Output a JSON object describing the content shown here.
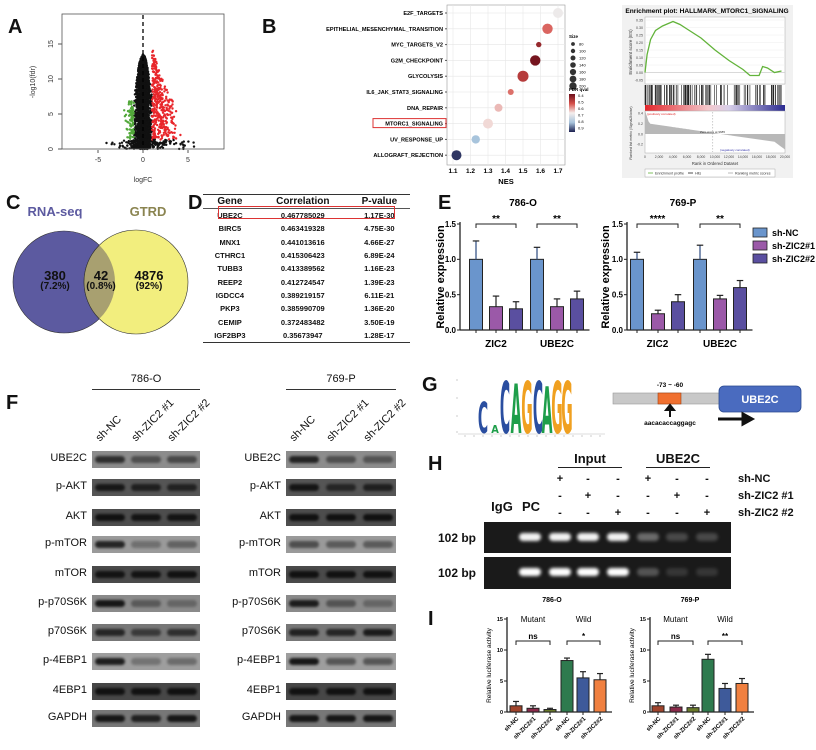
{
  "panel_labels": {
    "a": "A",
    "b": "B",
    "c": "C",
    "d": "D",
    "e": "E",
    "f": "F",
    "g": "G",
    "h": "H",
    "i": "I"
  },
  "chart_data": [
    {
      "type": "scatter",
      "xlabel": "logFC",
      "ylabel": "-log10(fdr)",
      "xlim": [
        -9,
        9
      ],
      "ylim": [
        0,
        19
      ],
      "xticks": [
        -5,
        0,
        5
      ],
      "yticks": [
        0,
        5,
        10,
        15
      ],
      "threshold_logFC": 1,
      "colors": {
        "up": "#e8262b",
        "down": "#52a83a",
        "not_significant": "#111111"
      }
    },
    {
      "type": "scatter",
      "xlabel": "NES",
      "xticks": [
        "1.1",
        "1.2",
        "1.3",
        "1.4",
        "1.5",
        "1.6",
        "1.7"
      ],
      "categories": [
        "E2F_TARGETS",
        "EPITHELIAL_MESENCHYMAL_TRANSITION",
        "MYC_TARGETS_V2",
        "G2M_CHECKPOINT",
        "GLYCOLYSIS",
        "IL6_JAK_STAT3_SIGNALING",
        "DNA_REPAIR",
        "MTORC1_SIGNALING",
        "UV_RESPONSE_UP",
        "ALLOGRAFT_REJECTION"
      ],
      "nes": [
        1.7,
        1.64,
        1.59,
        1.57,
        1.5,
        1.43,
        1.36,
        1.3,
        1.23,
        1.12
      ],
      "size": [
        150,
        160,
        60,
        160,
        170,
        70,
        110,
        150,
        120,
        150
      ],
      "fdr_qval": [
        0.66,
        0.52,
        0.44,
        0.41,
        0.47,
        0.53,
        0.6,
        0.63,
        0.75,
        0.88
      ],
      "highlight": "MTORC1_SIGNALING",
      "size_legend": {
        "title": "Size",
        "values": [
          80,
          100,
          120,
          140,
          160,
          180,
          200
        ]
      },
      "color_legend": {
        "title": "FDR qval",
        "ticks": [
          "0.4",
          "0.5",
          "0.6",
          "0.7",
          "0.8",
          "0.9"
        ]
      }
    },
    {
      "type": "line",
      "title": "Enrichment plot: HALLMARK_MTORC1_SIGNALING",
      "ylabel": "Enrichment score (ES)",
      "yticks": [
        "0.35",
        "0.30",
        "0.25",
        "0.20",
        "0.15",
        "0.10",
        "0.05",
        "0.00",
        "-0.05"
      ],
      "es_curve": [
        [
          0,
          0.0
        ],
        [
          300,
          0.12
        ],
        [
          800,
          0.22
        ],
        [
          1500,
          0.28
        ],
        [
          2500,
          0.31
        ],
        [
          3500,
          0.33
        ],
        [
          4000,
          0.34
        ],
        [
          5000,
          0.32
        ],
        [
          6000,
          0.29
        ],
        [
          8000,
          0.23
        ],
        [
          10000,
          0.15
        ],
        [
          12000,
          0.08
        ],
        [
          14000,
          0.02
        ],
        [
          15000,
          -0.02
        ],
        [
          16300,
          -0.02
        ],
        [
          16800,
          0.04
        ],
        [
          17500,
          0.03
        ],
        [
          18500,
          0.0
        ],
        [
          19500,
          0.01
        ]
      ],
      "metric_label": "Ranked list metric (Signal2Noise)",
      "metric_ticks": [
        "0.4",
        "0.2",
        "0.0",
        "-0.2"
      ],
      "xlabel": "Rank in Ordered Dataset",
      "xticks": [
        "0",
        "2,000",
        "4,000",
        "6,000",
        "8,000",
        "10,000",
        "12,000",
        "14,000",
        "16,000",
        "18,000",
        "20,000"
      ],
      "annotations": {
        "positive": "(positively correlated)",
        "zero_cross": "Zero cross at 9685",
        "negative": "(negatively correlated)"
      },
      "legend": [
        "Enrichment profile",
        "Hits",
        "Ranking metric scores"
      ],
      "line_color": "#62b33a"
    },
    {
      "type": "bar",
      "title": "786-O",
      "ylabel": "Relative expression",
      "categories": [
        "ZIC2",
        "UBE2C"
      ],
      "ylim": [
        0,
        1.5
      ],
      "yticks": [
        "0.0",
        "0.5",
        "1.0",
        "1.5"
      ],
      "series": [
        {
          "name": "sh-NC",
          "values": [
            1.0,
            1.0
          ],
          "errors": [
            0.26,
            0.17
          ],
          "color": "#6a95cc"
        },
        {
          "name": "sh-ZIC2#1",
          "values": [
            0.33,
            0.33
          ],
          "errors": [
            0.15,
            0.11
          ],
          "color": "#9b59a8"
        },
        {
          "name": "sh-ZIC2#2",
          "values": [
            0.3,
            0.44
          ],
          "errors": [
            0.1,
            0.11
          ],
          "color": "#5a4fa0"
        }
      ],
      "significance": [
        "**",
        "**"
      ]
    },
    {
      "type": "bar",
      "title": "769-P",
      "ylabel": "Relative expression",
      "categories": [
        "ZIC2",
        "UBE2C"
      ],
      "ylim": [
        0,
        1.5
      ],
      "yticks": [
        "0.0",
        "0.5",
        "1.0",
        "1.5"
      ],
      "series": [
        {
          "name": "sh-NC",
          "values": [
            1.0,
            1.0
          ],
          "errors": [
            0.1,
            0.2
          ],
          "color": "#6a95cc"
        },
        {
          "name": "sh-ZIC2#1",
          "values": [
            0.23,
            0.44
          ],
          "errors": [
            0.05,
            0.05
          ],
          "color": "#9b59a8"
        },
        {
          "name": "sh-ZIC2#2",
          "values": [
            0.4,
            0.6
          ],
          "errors": [
            0.1,
            0.1
          ],
          "color": "#5a4fa0"
        }
      ],
      "significance": [
        "****",
        "**"
      ]
    },
    {
      "type": "bar",
      "title": "786-O",
      "ylabel": "Relative luciferase activity",
      "groups": [
        "Mutant",
        "Wild"
      ],
      "categories": [
        "sh-NC",
        "sh-ZIC2#1",
        "sh-ZIC2#2",
        "sh-NC",
        "sh-ZIC2#1",
        "sh-ZIC2#2"
      ],
      "values": [
        1.0,
        0.6,
        0.4,
        8.3,
        5.5,
        5.2
      ],
      "errors": [
        0.7,
        0.4,
        0.2,
        0.4,
        1.0,
        1.0
      ],
      "colors": [
        "#a0442c",
        "#8a2a4a",
        "#6a7a2a",
        "#2e7a4e",
        "#3e5a9a",
        "#f08040"
      ],
      "ylim": [
        0,
        15
      ],
      "yticks": [
        "0",
        "5",
        "10",
        "15"
      ],
      "significance": [
        "ns",
        "*"
      ]
    },
    {
      "type": "bar",
      "title": "769-P",
      "ylabel": "Relative luciferase activity",
      "groups": [
        "Mutant",
        "Wild"
      ],
      "categories": [
        "sh-NC",
        "sh-ZIC2#1",
        "sh-ZIC2#2",
        "sh-NC",
        "sh-ZIC2#1",
        "sh-ZIC2#2"
      ],
      "values": [
        1.0,
        0.8,
        0.7,
        8.5,
        3.8,
        4.6
      ],
      "errors": [
        0.5,
        0.3,
        0.4,
        0.8,
        0.8,
        0.8
      ],
      "colors": [
        "#a0442c",
        "#8a2a4a",
        "#6a7a2a",
        "#2e7a4e",
        "#3e5a9a",
        "#f08040"
      ],
      "ylim": [
        0,
        15
      ],
      "yticks": [
        "0",
        "5",
        "10",
        "15"
      ],
      "significance": [
        "ns",
        "**"
      ]
    }
  ],
  "venn": {
    "sets": [
      {
        "name": "RNA-seq",
        "color": "#5c5aa0"
      },
      {
        "name": "GTRD",
        "color": "#f2ee7e"
      }
    ],
    "only_a": {
      "count": "380",
      "pct": "(7.2%)"
    },
    "both": {
      "count": "42",
      "pct": "(0.8%)"
    },
    "only_b": {
      "count": "4876",
      "pct": "(92%)"
    }
  },
  "table": {
    "headers": [
      "Gene",
      "Correlation",
      "P-value"
    ],
    "rows": [
      [
        "UBE2C",
        "0.467785029",
        "1.17E-30"
      ],
      [
        "BIRC5",
        "0.463419328",
        "4.75E-30"
      ],
      [
        "MNX1",
        "0.441013616",
        "4.66E-27"
      ],
      [
        "CTHRC1",
        "0.415306423",
        "6.89E-24"
      ],
      [
        "TUBB3",
        "0.413389562",
        "1.16E-23"
      ],
      [
        "REEP2",
        "0.412724547",
        "1.39E-23"
      ],
      [
        "IGDCC4",
        "0.389219157",
        "6.11E-21"
      ],
      [
        "PKP3",
        "0.385990709",
        "1.36E-20"
      ],
      [
        "CEMIP",
        "0.372483482",
        "3.50E-19"
      ],
      [
        "IGF2BP3",
        "0.35673947",
        "1.28E-17"
      ]
    ],
    "highlight_row": 0
  },
  "western": {
    "cell_lines": [
      "786-O",
      "769-P"
    ],
    "lanes": [
      "sh-NC",
      "sh-ZIC2 #1",
      "sh-ZIC2 #2"
    ],
    "proteins": [
      {
        "name": "UBE2C",
        "bands": [
          [
            0.75,
            0.5,
            0.55
          ],
          [
            0.85,
            0.5,
            0.45
          ]
        ]
      },
      {
        "name": "p-AKT",
        "bands": [
          [
            0.9,
            0.8,
            0.75
          ],
          [
            0.95,
            0.7,
            0.8
          ]
        ]
      },
      {
        "name": "AKT",
        "bands": [
          [
            1,
            0.95,
            0.95
          ],
          [
            1,
            1,
            1
          ]
        ]
      },
      {
        "name": "p-mTOR",
        "bands": [
          [
            0.85,
            0.3,
            0.4
          ],
          [
            0.55,
            0.45,
            0.45
          ]
        ]
      },
      {
        "name": "mTOR",
        "bands": [
          [
            0.95,
            0.95,
            1
          ],
          [
            1,
            1,
            1
          ]
        ]
      },
      {
        "name": "p-p70S6K",
        "bands": [
          [
            0.95,
            0.4,
            0.3
          ],
          [
            0.9,
            0.45,
            0.3
          ]
        ]
      },
      {
        "name": "p70S6K",
        "bands": [
          [
            0.8,
            0.6,
            0.7
          ],
          [
            0.85,
            0.8,
            0.9
          ]
        ]
      },
      {
        "name": "p-4EBP1",
        "bands": [
          [
            0.9,
            0.3,
            0.35
          ],
          [
            0.95,
            0.5,
            0.5
          ]
        ]
      },
      {
        "name": "4EBP1",
        "bands": [
          [
            1,
            1,
            1
          ],
          [
            1,
            1,
            1
          ]
        ]
      },
      {
        "name": "GAPDH",
        "bands": [
          [
            0.95,
            0.85,
            0.95
          ],
          [
            0.95,
            0.95,
            0.95
          ]
        ]
      }
    ]
  },
  "motif": {
    "letters": [
      {
        "base": "C",
        "height": 0.6
      },
      {
        "base": "A",
        "height": 0.15
      },
      {
        "base": "C",
        "height": 1.0
      },
      {
        "base": "A",
        "height": 0.95
      },
      {
        "base": "G",
        "height": 1.0
      },
      {
        "base": "C",
        "height": 1.0
      },
      {
        "base": "A",
        "height": 0.9
      },
      {
        "base": "G",
        "height": 1.0
      },
      {
        "base": "G",
        "height": 1.0
      }
    ],
    "colors": {
      "A": "#1e9e4a",
      "C": "#2a4ea0",
      "G": "#f0a020",
      "T": "#d22"
    }
  },
  "promoter": {
    "region": "-73 ~ -60",
    "sequence": "aacacaccaggagc",
    "gene": "UBE2C",
    "gene_color": "#4a6bbf",
    "site_color": "#f07030"
  },
  "chip": {
    "group_labels": [
      "Input",
      "UBE2C"
    ],
    "controls": [
      "IgG",
      "PC"
    ],
    "conditions": [
      {
        "name": "sh-NC",
        "marks": [
          "+",
          "-",
          "-",
          "+",
          "-",
          "-"
        ]
      },
      {
        "name": "sh-ZIC2 #1",
        "marks": [
          "-",
          "+",
          "-",
          "-",
          "+",
          "-"
        ]
      },
      {
        "name": "sh-ZIC2 #2",
        "marks": [
          "-",
          "-",
          "+",
          "-",
          "-",
          "+"
        ]
      }
    ],
    "gels": [
      {
        "label": "102 bp",
        "intensity": [
          0,
          0.95,
          0.95,
          0.95,
          0.95,
          0.35,
          0.2,
          0.2
        ]
      },
      {
        "label": "102 bp",
        "intensity": [
          0,
          1,
          1,
          1,
          1,
          0.25,
          0.12,
          0.12
        ]
      }
    ]
  }
}
